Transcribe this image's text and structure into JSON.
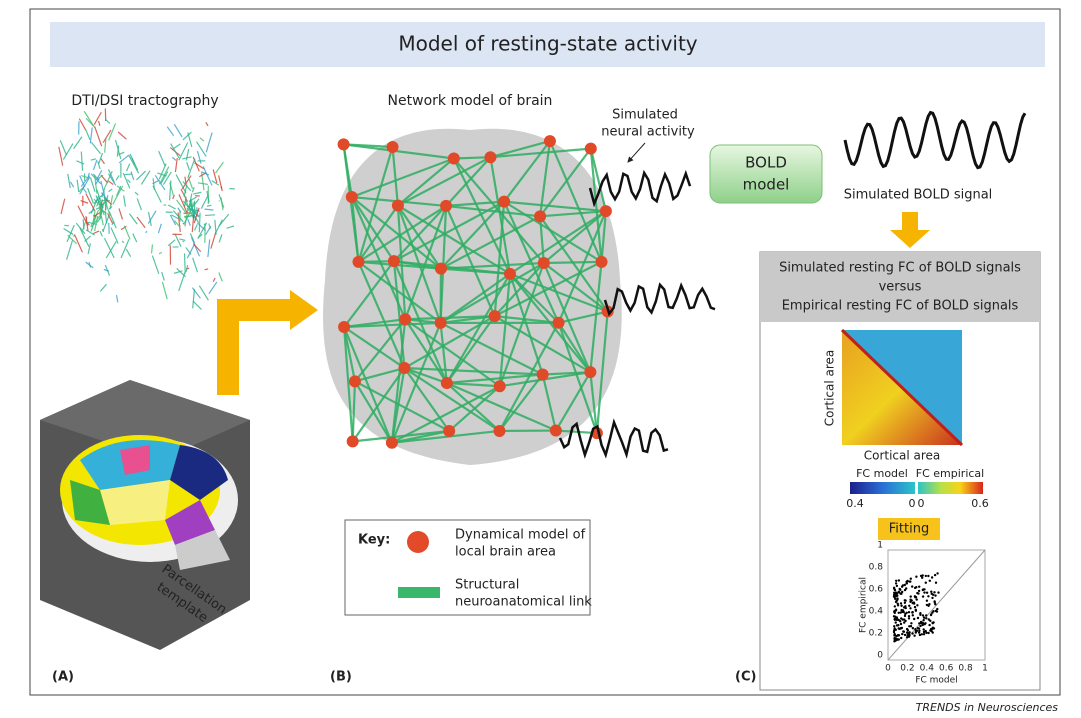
{
  "header": {
    "title": "Model of resting-state activity"
  },
  "panel_a": {
    "label": "(A)",
    "title": "DTI/DSI tractography",
    "parcellation": [
      "Parcellation",
      "template"
    ]
  },
  "panel_b": {
    "label": "(B)",
    "title": "Network model of brain",
    "neural_activity": [
      "Simulated",
      "neural activity"
    ],
    "key": {
      "title": "Key:",
      "node": [
        "Dynamical model of",
        "local brain area"
      ],
      "link": [
        "Structural",
        "neuroanatomical link"
      ]
    }
  },
  "panel_c": {
    "label": "(C)",
    "bold_model": [
      "BOLD",
      "model"
    ],
    "bold_signal": "Simulated BOLD signal",
    "comparison": [
      "Simulated resting FC of BOLD signals",
      "versus",
      "Empirical resting FC of BOLD signals"
    ],
    "matrix_y": "Cortical area",
    "matrix_x": "Cortical area",
    "colorbar": {
      "left_title": "FC model",
      "right_title": "FC empirical",
      "left_ticks": [
        "0.4",
        "0"
      ],
      "right_ticks": [
        "0",
        "0.6"
      ]
    },
    "fitting": "Fitting",
    "scatter": {
      "ylabel": "FC empirical",
      "xlabel": "FC model",
      "yticks": [
        "0",
        "0.2",
        "0.4",
        "0.6",
        "0.8",
        "1"
      ],
      "xticks": [
        "0",
        "0.2",
        "0.4",
        "0.6",
        "0.8",
        "1"
      ]
    }
  },
  "footer": {
    "credit": "TRENDS in Neurosciences"
  }
}
